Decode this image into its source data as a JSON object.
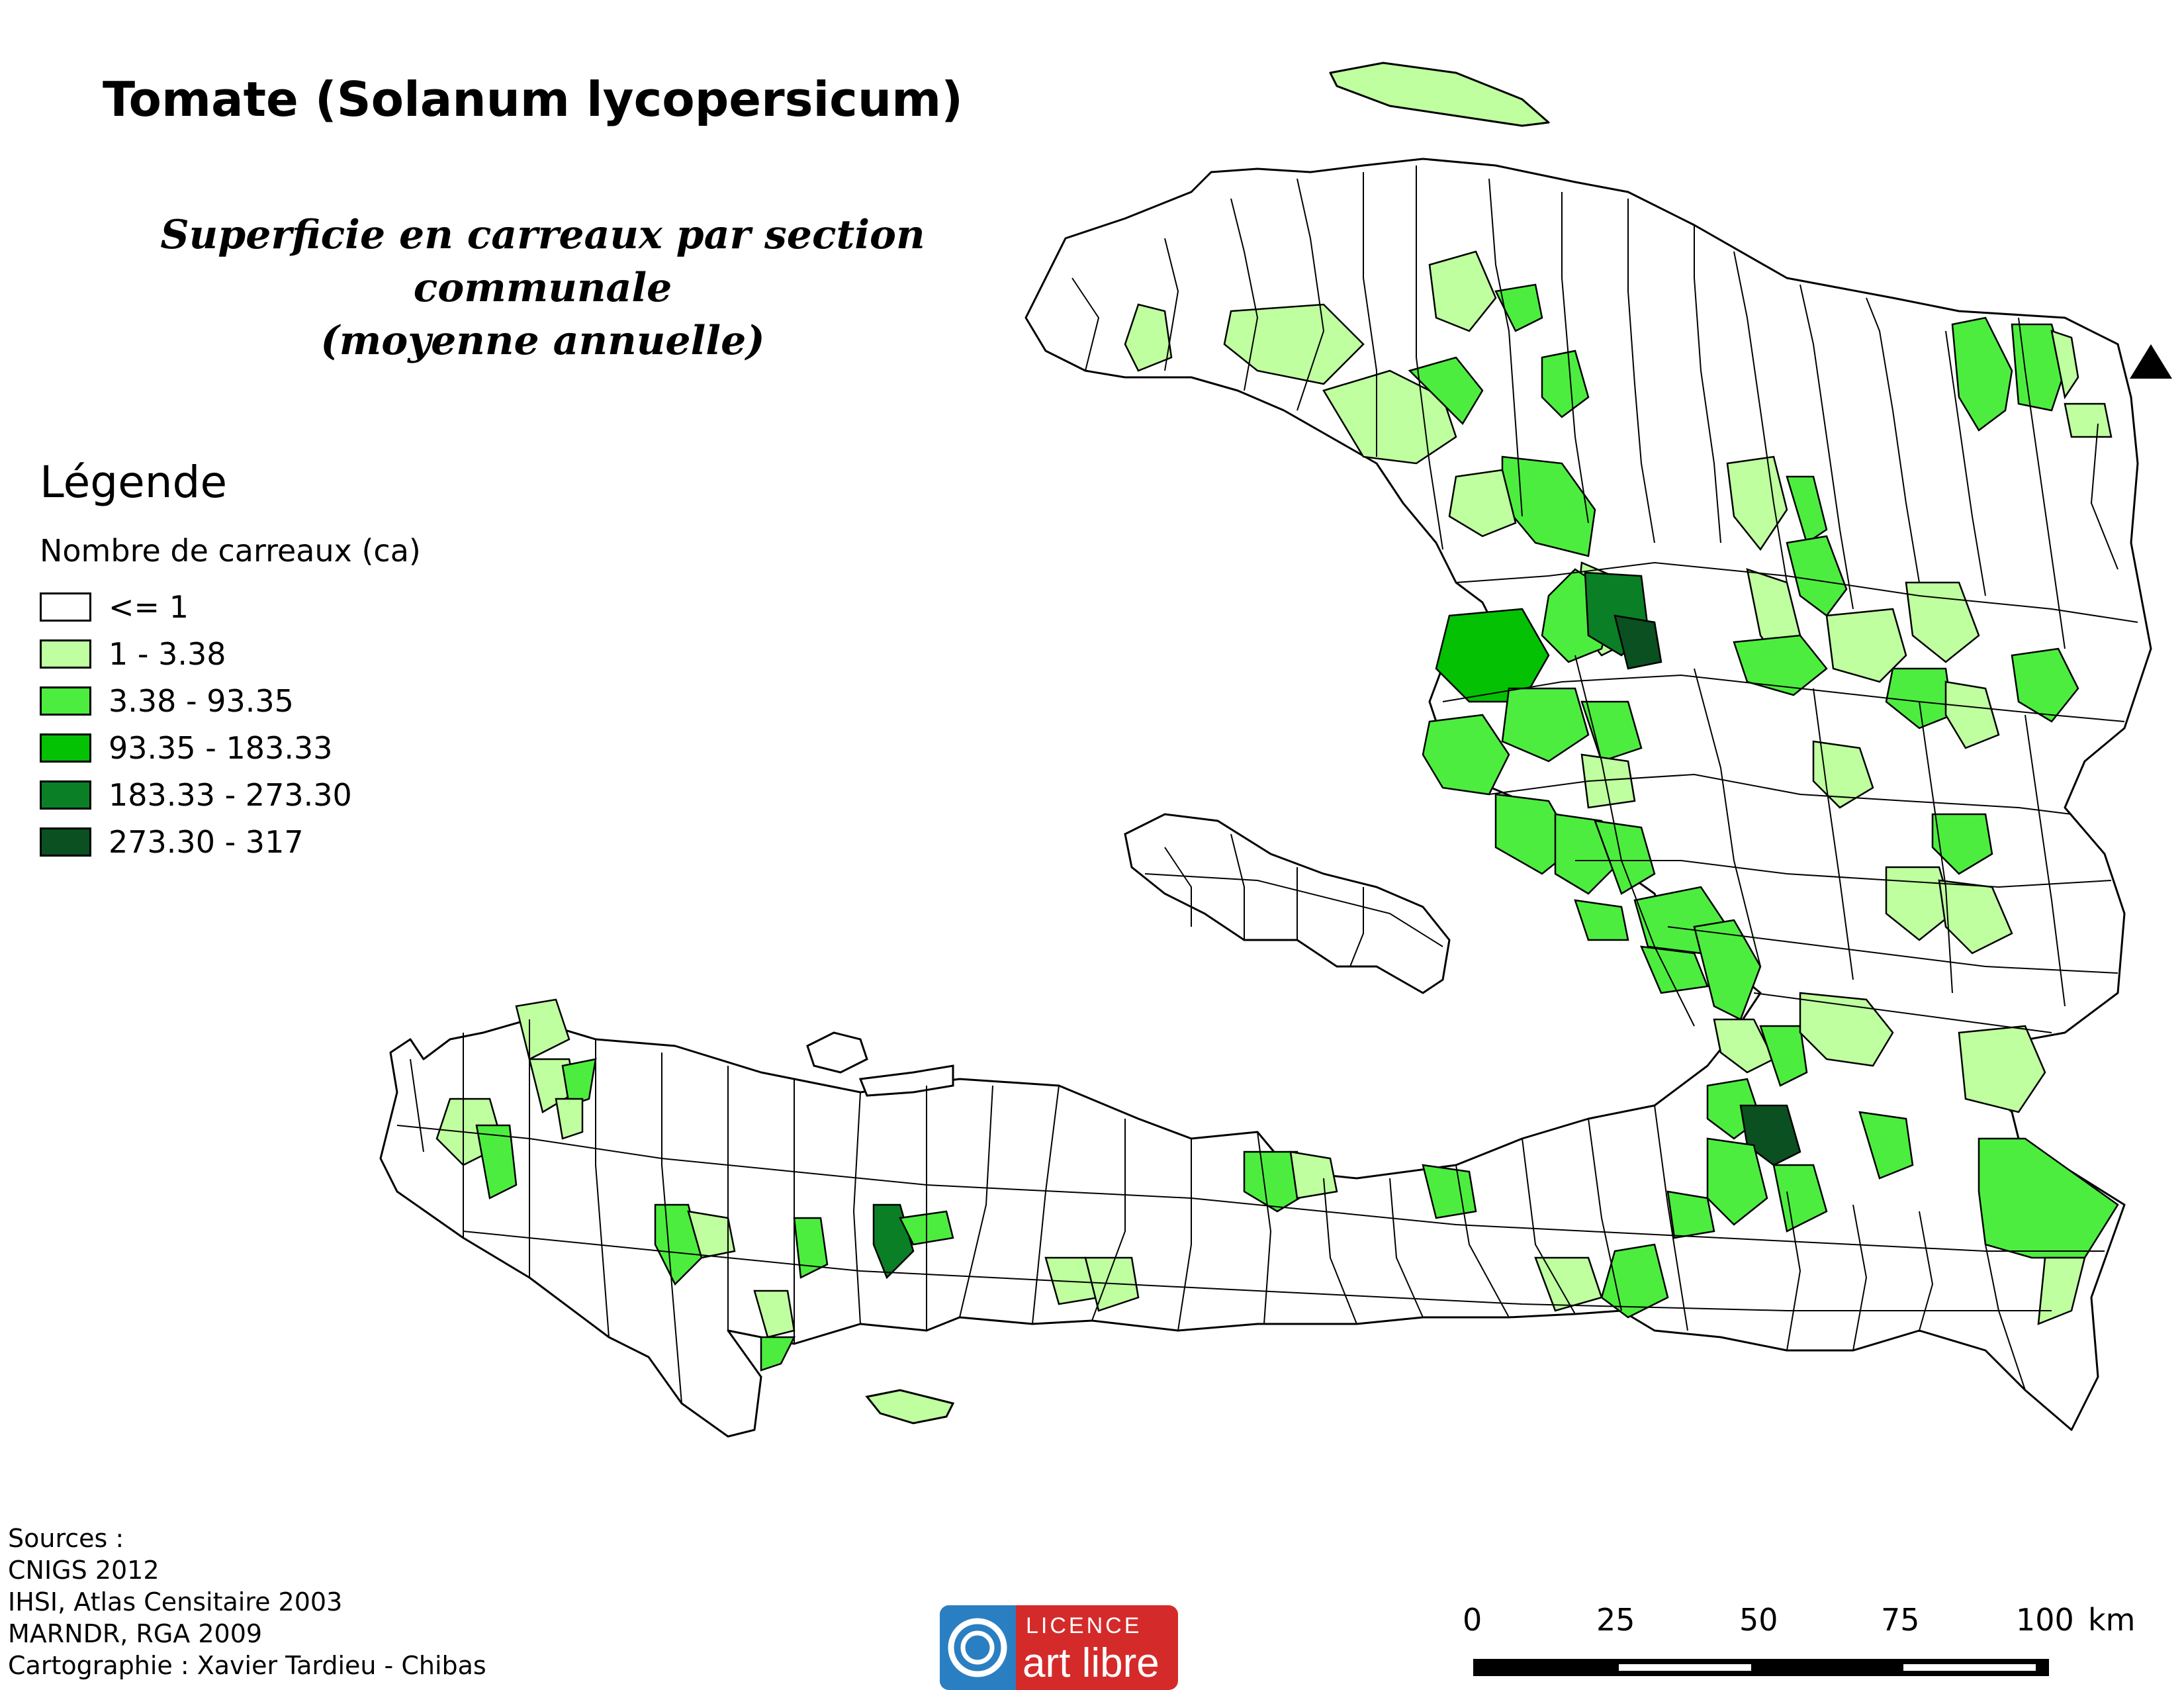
{
  "title": "Tomate (Solanum lycopersicum)",
  "subtitle_line1": "Superficie en carreaux par section communale",
  "subtitle_line2": "(moyenne annuelle)",
  "legend": {
    "title": "Légende",
    "subtitle": "Nombre de carreaux (ca)",
    "classes": [
      {
        "label": "<= 1",
        "color": "#ffffff"
      },
      {
        "label": "1 - 3.38",
        "color": "#bfff9f"
      },
      {
        "label": "3.38 - 93.35",
        "color": "#4ded3f"
      },
      {
        "label": "93.35 - 183.33",
        "color": "#04c104"
      },
      {
        "label": "183.33 - 273.30",
        "color": "#0a7f26"
      },
      {
        "label": "273.30 - 317",
        "color": "#0a5020"
      }
    ]
  },
  "sources": [
    "Sources :",
    "CNIGS 2012",
    "IHSI, Atlas Censitaire 2003",
    "MARNDR, RGA 2009",
    "Cartographie : Xavier Tardieu - Chibas"
  ],
  "licence": {
    "line1": "LICENCE",
    "line2": "art libre"
  },
  "scale": {
    "ticks": [
      "0",
      "25",
      "50",
      "75",
      "100"
    ],
    "unit": "km"
  },
  "north_icon": "north-arrow-triangle"
}
